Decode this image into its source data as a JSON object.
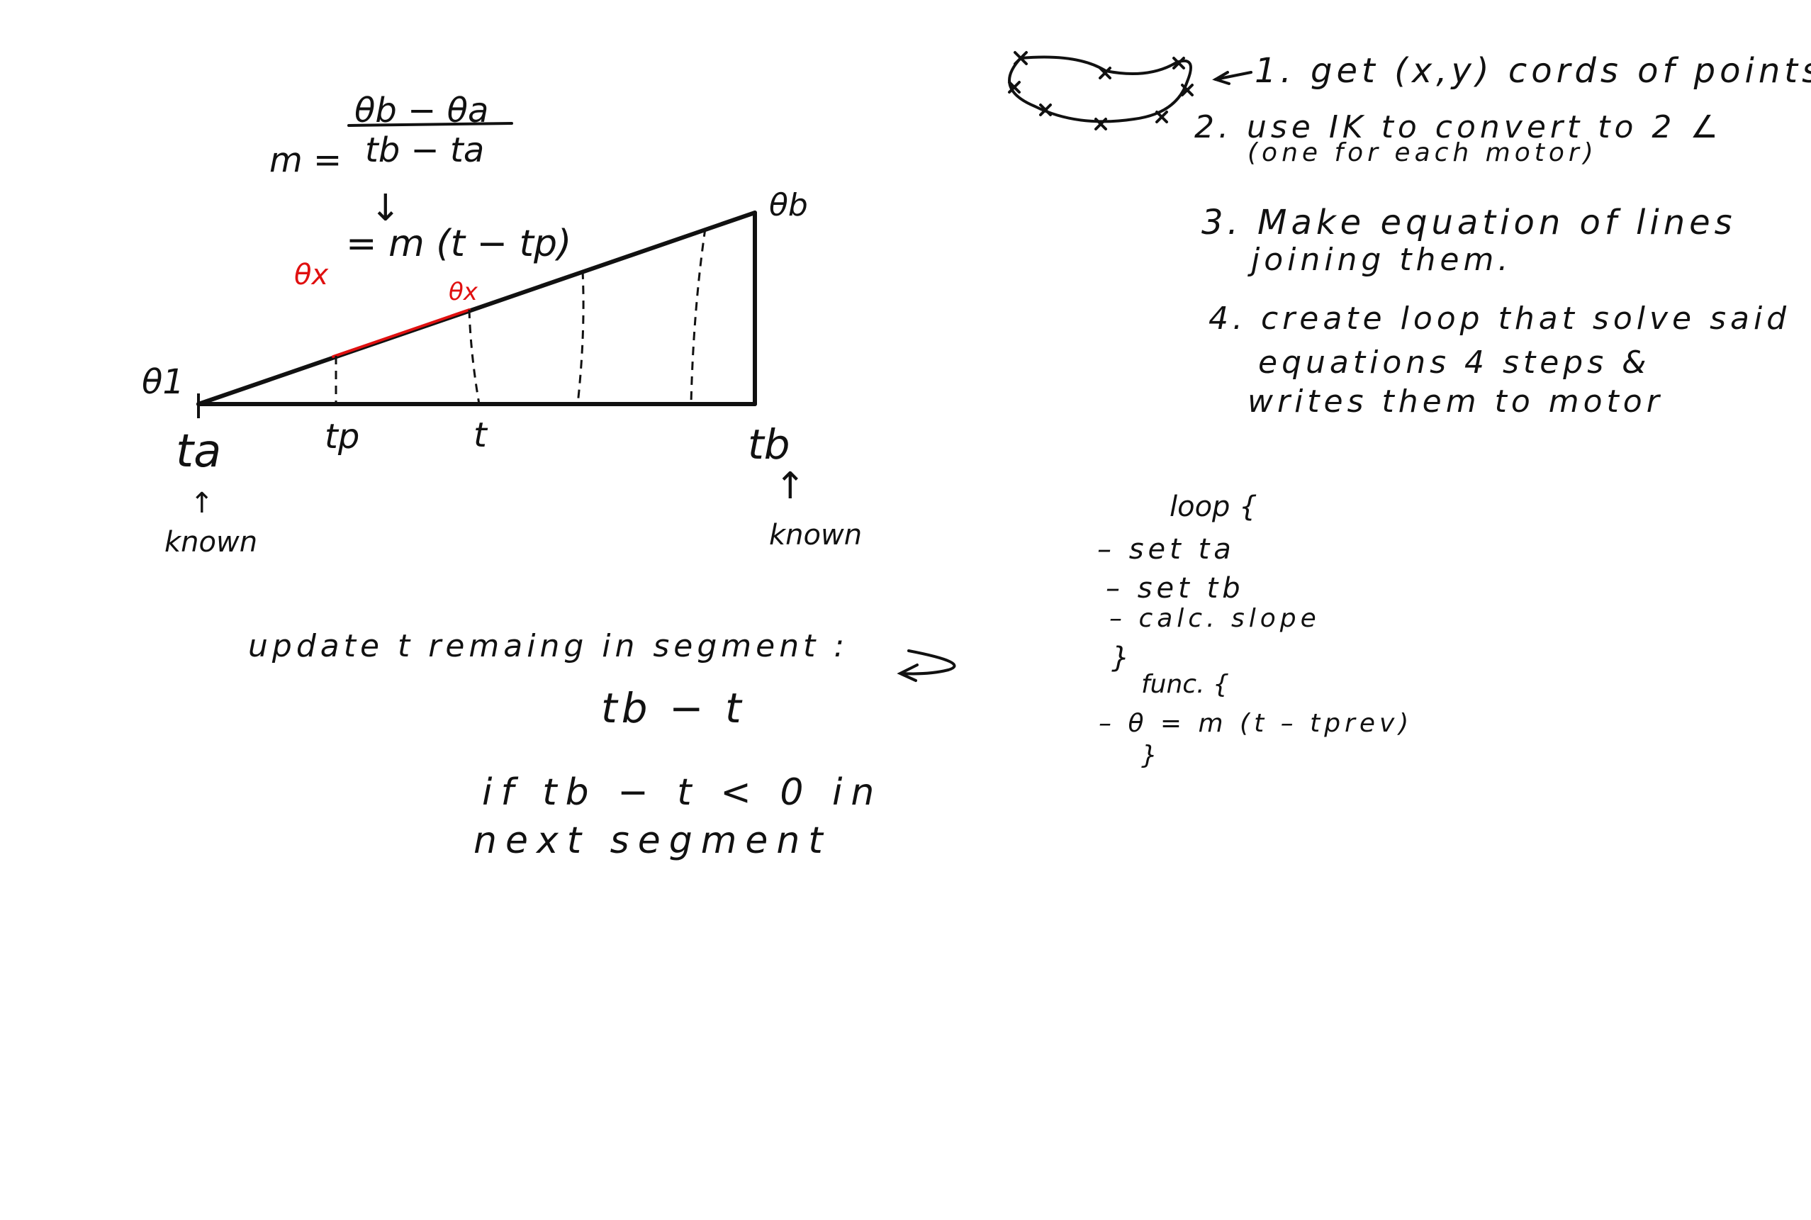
{
  "slope_formula": {
    "lhs": "m =",
    "numerator": "θb − θa",
    "denominator": "tb − ta",
    "arrow": "↓",
    "interp_lhs": "θx",
    "interp_rhs": "= m (t − tp)"
  },
  "triangle": {
    "theta_start": "θ1",
    "theta_end": "θb",
    "theta_mid": "θx",
    "t_start": "ta",
    "t_prev": "tp",
    "t_current": "t",
    "t_end": "tb",
    "known_arrow": "↑",
    "known_left": "known",
    "known_right": "known"
  },
  "steps": {
    "step1": "1. get (x,y) cords of points",
    "step2_line1": "2. use IK to convert to 2 ∠",
    "step2_line2": "(one for each motor)",
    "step3_line1": "3. Make equation of lines",
    "step3_line2": "joining them.",
    "step4_line1": "4. create loop that solve said",
    "step4_line2": "equations 4 steps &",
    "step4_line3": "writes them to motor"
  },
  "pseudocode": {
    "loop_open": "loop {",
    "set_ta": "– set ta",
    "set_tb": "– set tb",
    "calc_slope": "– calc. slope",
    "close1": "}",
    "func_open": "func. {",
    "theta_eq": "– θ = m (t – tprev)",
    "close2": "}"
  },
  "update_notes": {
    "line1": "update t remaing in segment :",
    "line2": "tb − t",
    "line3": "if tb − t < 0 in",
    "line4": "next segment"
  },
  "colors": {
    "ink": "#111111",
    "accent": "#e01010"
  }
}
